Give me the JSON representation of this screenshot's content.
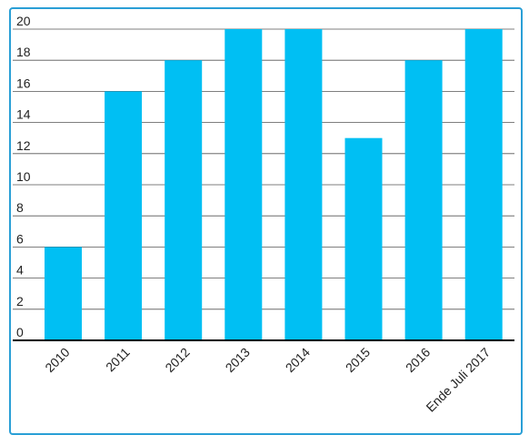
{
  "chart_data": {
    "type": "bar",
    "categories": [
      "2010",
      "2011",
      "2012",
      "2013",
      "2014",
      "2015",
      "2016",
      "Ende Juli 2017"
    ],
    "values": [
      6,
      16,
      18,
      20,
      20,
      13,
      18,
      20
    ],
    "title": "",
    "xlabel": "",
    "ylabel": "",
    "ylim": [
      0,
      20
    ],
    "yticks": [
      "0",
      "2",
      "4",
      "6",
      "8",
      "10",
      "12",
      "14",
      "16",
      "18",
      "20"
    ],
    "grid": true,
    "legend": "none",
    "colors": {
      "bar": "#00bff3",
      "grid": "#555555",
      "axis": "#000000",
      "frame": "#2a9fd6"
    }
  }
}
